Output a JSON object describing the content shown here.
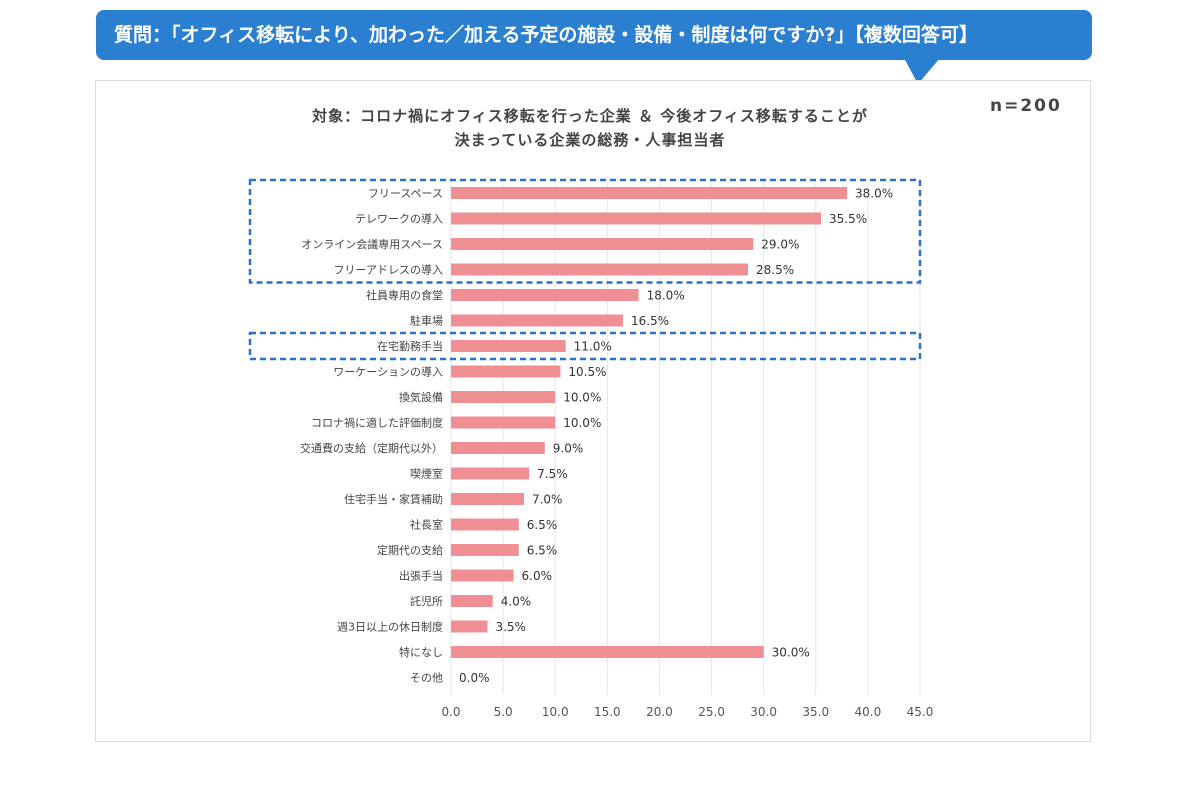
{
  "banner": {
    "text": "質問：「オフィス移転により、加わった／加える予定の施設・設備・制度は何ですか?」【複数回答可】"
  },
  "subtitle": {
    "line1": "対象：コロナ禍にオフィス移転を行った企業 ＆ 今後オフィス移転することが",
    "line2": "決まっている企業の総務・人事担当者"
  },
  "sample": {
    "text": "n=200"
  },
  "colors": {
    "banner": "#2b7fd0",
    "bar": "#ef8f93",
    "highlight": "#2a72c8",
    "grid": "#e6e6e6"
  },
  "chart_data": {
    "type": "bar",
    "orientation": "horizontal",
    "title": "",
    "xlabel": "",
    "ylabel": "",
    "xlim": [
      0,
      45
    ],
    "xticks": [
      "0.0",
      "5.0",
      "10.0",
      "15.0",
      "20.0",
      "25.0",
      "30.0",
      "35.0",
      "40.0",
      "45.0"
    ],
    "grid": true,
    "categories": [
      "フリースペース",
      "テレワークの導入",
      "オンライン会議専用スペース",
      "フリーアドレスの導入",
      "社員専用の食堂",
      "駐車場",
      "在宅勤務手当",
      "ワーケーションの導入",
      "換気設備",
      "コロナ禍に適した評価制度",
      "交通費の支給（定期代以外）",
      "喫煙室",
      "住宅手当・家賃補助",
      "社長室",
      "定期代の支給",
      "出張手当",
      "託児所",
      "週3日以上の休日制度",
      "特になし",
      "その他"
    ],
    "values": [
      38.0,
      35.5,
      29.0,
      28.5,
      18.0,
      16.5,
      11.0,
      10.5,
      10.0,
      10.0,
      9.0,
      7.5,
      7.0,
      6.5,
      6.5,
      6.0,
      4.0,
      3.5,
      30.0,
      0.0
    ],
    "value_labels": [
      "38.0%",
      "35.5%",
      "29.0%",
      "28.5%",
      "18.0%",
      "16.5%",
      "11.0%",
      "10.5%",
      "10.0%",
      "10.0%",
      "9.0%",
      "7.5%",
      "7.0%",
      "6.5%",
      "6.5%",
      "6.0%",
      "4.0%",
      "3.5%",
      "30.0%",
      "0.0%"
    ],
    "highlight_groups": [
      [
        0,
        3
      ],
      [
        6,
        6
      ]
    ]
  }
}
